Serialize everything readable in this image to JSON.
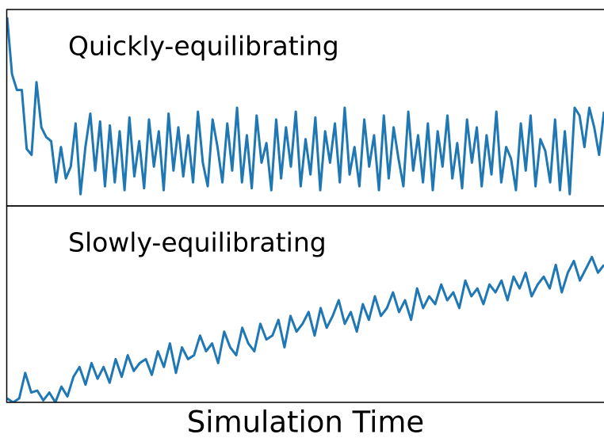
{
  "chart_data": [
    {
      "type": "line",
      "annotation": "Quickly-equilibrating",
      "color": "#1f77b4",
      "ylim": [
        0,
        100
      ],
      "values": [
        96,
        67,
        59,
        59,
        29,
        26,
        63,
        40,
        35,
        33,
        12,
        30,
        14,
        20,
        42,
        6,
        30,
        47,
        18,
        43,
        10,
        41,
        12,
        38,
        8,
        45,
        15,
        33,
        9,
        44,
        20,
        38,
        8,
        47,
        18,
        40,
        15,
        36,
        12,
        48,
        22,
        10,
        44,
        30,
        12,
        42,
        18,
        50,
        12,
        36,
        9,
        46,
        22,
        32,
        8,
        44,
        14,
        40,
        20,
        48,
        10,
        34,
        16,
        45,
        8,
        38,
        22,
        42,
        12,
        50,
        16,
        30,
        10,
        44,
        20,
        36,
        8,
        46,
        14,
        40,
        24,
        10,
        48,
        18,
        36,
        12,
        42,
        8,
        38,
        20,
        46,
        14,
        32,
        9,
        44,
        22,
        40,
        10,
        36,
        16,
        48,
        12,
        30,
        24,
        8,
        42,
        18,
        46,
        10,
        34,
        28,
        12,
        44,
        8,
        38,
        6,
        50,
        46,
        30,
        50,
        40,
        26,
        48
      ]
    },
    {
      "type": "line",
      "annotation": "Slowly-equilibrating",
      "x_label": "Simulation Time",
      "color": "#1f77b4",
      "ylim": [
        0,
        100
      ],
      "values": [
        2,
        0,
        2,
        15,
        5,
        6,
        1,
        5,
        0,
        8,
        3,
        13,
        18,
        9,
        20,
        12,
        18,
        10,
        22,
        13,
        24,
        16,
        20,
        22,
        14,
        26,
        18,
        30,
        15,
        28,
        22,
        24,
        34,
        26,
        30,
        20,
        36,
        28,
        24,
        38,
        30,
        26,
        40,
        32,
        34,
        42,
        28,
        44,
        36,
        40,
        46,
        34,
        48,
        38,
        44,
        52,
        40,
        46,
        36,
        50,
        42,
        54,
        44,
        48,
        56,
        46,
        52,
        42,
        58,
        48,
        54,
        50,
        60,
        52,
        56,
        48,
        62,
        54,
        58,
        50,
        60,
        56,
        62,
        52,
        64,
        58,
        66,
        54,
        60,
        64,
        58,
        70,
        56,
        66,
        72,
        62,
        68,
        74,
        66,
        70
      ]
    }
  ]
}
